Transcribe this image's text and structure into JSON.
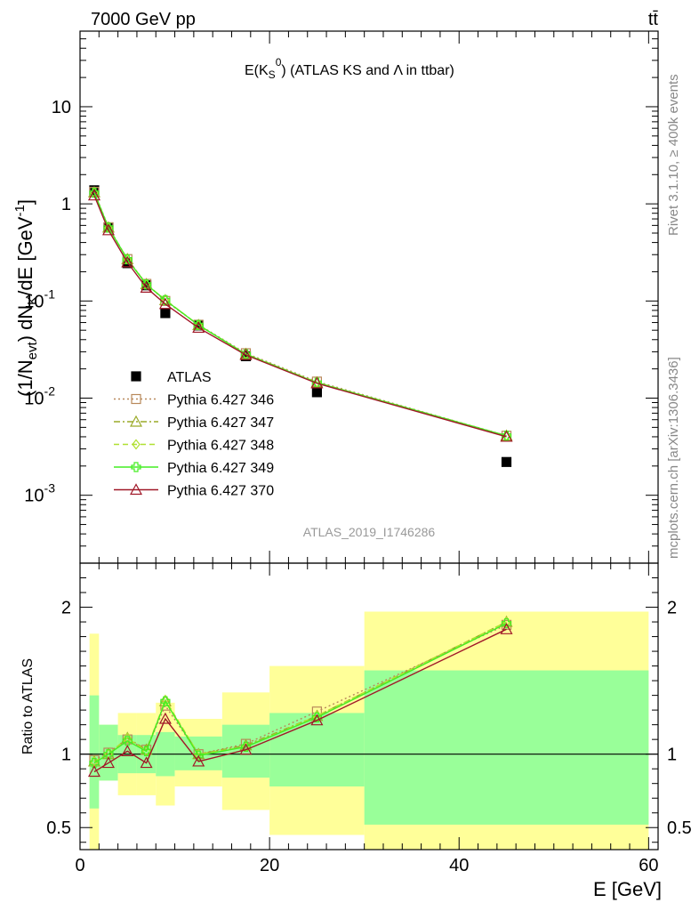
{
  "header": {
    "left": "7000 GeV pp",
    "right": "tt̄"
  },
  "plot_title": "E(K_S^0) (ATLAS KS and Λ in ttbar)",
  "side_labels": {
    "rivet": "Rivet 3.1.10, ≥ 400k events",
    "mcplots": "mcplots.cern.ch [arXiv:1306.3436]"
  },
  "analysis_ref": "ATLAS_2019_I1746286",
  "colors": {
    "data": "#000000",
    "p346": "#b8885a",
    "p347": "#9aaa28",
    "p348": "#b0e030",
    "p349": "#44ee22",
    "p370": "#a01828",
    "band_inner": "#99ff99",
    "band_outer": "#ffff99"
  },
  "chart_data": [
    {
      "type": "line",
      "panel": "main",
      "title": "E(K_S^0) (ATLAS KS and Λ in ttbar)",
      "xlabel": "E [GeV]",
      "ylabel": "(1/N_evt) dN_K/dE [GeV^-1]",
      "xlim": [
        0,
        61
      ],
      "ylim": [
        0.0002,
        60
      ],
      "yscale": "log",
      "x": [
        1.5,
        3,
        5,
        7,
        9,
        12.5,
        17.5,
        25,
        45
      ],
      "yticks": [
        "10^-3",
        "10^-2",
        "10^-1",
        "1",
        "10"
      ],
      "legend": "center-left",
      "series": [
        {
          "name": "ATLAS",
          "style": "data",
          "values": [
            1.38,
            0.57,
            0.245,
            0.145,
            0.075,
            0.056,
            0.027,
            0.0115,
            0.0022
          ]
        },
        {
          "name": "Pythia 6.427 346",
          "style": "p346",
          "values": [
            1.33,
            0.575,
            0.27,
            0.15,
            0.1,
            0.057,
            0.029,
            0.0148,
            0.0041
          ]
        },
        {
          "name": "Pythia 6.427 347",
          "style": "p347",
          "values": [
            1.31,
            0.57,
            0.27,
            0.149,
            0.102,
            0.0565,
            0.0285,
            0.0145,
            0.0041
          ]
        },
        {
          "name": "Pythia 6.427 348",
          "style": "p348",
          "values": [
            1.31,
            0.57,
            0.27,
            0.148,
            0.103,
            0.0565,
            0.0285,
            0.0145,
            0.0041
          ]
        },
        {
          "name": "Pythia 6.427 349",
          "style": "p349",
          "values": [
            1.3,
            0.57,
            0.268,
            0.148,
            0.102,
            0.0565,
            0.0283,
            0.0144,
            0.0041
          ]
        },
        {
          "name": "Pythia 6.427 370",
          "style": "p370",
          "values": [
            1.22,
            0.535,
            0.25,
            0.137,
            0.093,
            0.053,
            0.0278,
            0.0142,
            0.004
          ]
        }
      ]
    },
    {
      "type": "line",
      "panel": "ratio",
      "xlabel": "E [GeV]",
      "ylabel": "Ratio to ATLAS",
      "xlim": [
        0,
        61
      ],
      "ylim": [
        0.35,
        2.3
      ],
      "xticks": [
        0,
        20,
        40,
        60
      ],
      "yticks": [
        0.5,
        1,
        2
      ],
      "x": [
        1.5,
        3,
        5,
        7,
        9,
        12.5,
        17.5,
        25,
        45
      ],
      "bands": [
        {
          "x0": 1,
          "x1": 2,
          "inner": [
            0.63,
            1.4
          ],
          "outer": [
            0.35,
            1.82
          ]
        },
        {
          "x0": 2,
          "x1": 4,
          "inner": [
            0.82,
            1.2
          ],
          "outer": [
            0.82,
            1.2
          ]
        },
        {
          "x0": 4,
          "x1": 6,
          "inner": [
            0.87,
            1.13
          ],
          "outer": [
            0.72,
            1.28
          ]
        },
        {
          "x0": 6,
          "x1": 8,
          "inner": [
            0.87,
            1.13
          ],
          "outer": [
            0.72,
            1.28
          ]
        },
        {
          "x0": 8,
          "x1": 10,
          "inner": [
            0.85,
            1.15
          ],
          "outer": [
            0.65,
            1.35
          ]
        },
        {
          "x0": 10,
          "x1": 15,
          "inner": [
            0.89,
            1.12
          ],
          "outer": [
            0.78,
            1.24
          ]
        },
        {
          "x0": 15,
          "x1": 20,
          "inner": [
            0.84,
            1.2
          ],
          "outer": [
            0.62,
            1.42
          ]
        },
        {
          "x0": 20,
          "x1": 30,
          "inner": [
            0.78,
            1.28
          ],
          "outer": [
            0.45,
            1.6
          ]
        },
        {
          "x0": 30,
          "x1": 60,
          "inner": [
            0.52,
            1.57
          ],
          "outer": [
            0.35,
            1.97
          ]
        }
      ],
      "series": [
        {
          "name": "Pythia 6.427 346",
          "style": "p346",
          "values": [
            0.96,
            1.01,
            1.1,
            1.03,
            1.33,
            1.0,
            1.07,
            1.29,
            1.88
          ]
        },
        {
          "name": "Pythia 6.427 347",
          "style": "p347",
          "values": [
            0.95,
            1.0,
            1.11,
            1.03,
            1.36,
            1.0,
            1.06,
            1.26,
            1.9
          ]
        },
        {
          "name": "Pythia 6.427 348",
          "style": "p348",
          "values": [
            0.95,
            1.0,
            1.11,
            1.02,
            1.37,
            1.0,
            1.05,
            1.26,
            1.9
          ]
        },
        {
          "name": "Pythia 6.427 349",
          "style": "p349",
          "values": [
            0.94,
            1.0,
            1.09,
            1.02,
            1.36,
            0.99,
            1.05,
            1.25,
            1.89
          ]
        },
        {
          "name": "Pythia 6.427 370",
          "style": "p370",
          "values": [
            0.88,
            0.94,
            1.02,
            0.94,
            1.24,
            0.95,
            1.03,
            1.23,
            1.85
          ]
        }
      ]
    }
  ]
}
